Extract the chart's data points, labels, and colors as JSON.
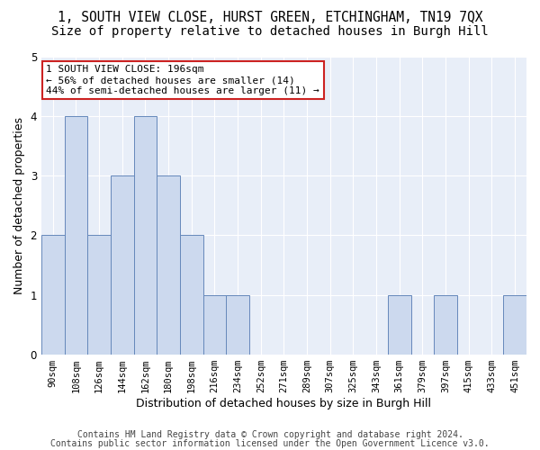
{
  "title1": "1, SOUTH VIEW CLOSE, HURST GREEN, ETCHINGHAM, TN19 7QX",
  "title2": "Size of property relative to detached houses in Burgh Hill",
  "xlabel": "Distribution of detached houses by size in Burgh Hill",
  "ylabel": "Number of detached properties",
  "categories": [
    "90sqm",
    "108sqm",
    "126sqm",
    "144sqm",
    "162sqm",
    "180sqm",
    "198sqm",
    "216sqm",
    "234sqm",
    "252sqm",
    "271sqm",
    "289sqm",
    "307sqm",
    "325sqm",
    "343sqm",
    "361sqm",
    "379sqm",
    "397sqm",
    "415sqm",
    "433sqm",
    "451sqm"
  ],
  "values": [
    2,
    4,
    2,
    3,
    4,
    3,
    2,
    1,
    1,
    0,
    0,
    0,
    0,
    0,
    0,
    1,
    0,
    1,
    0,
    0,
    1
  ],
  "highlight_index": 6,
  "bar_color": "#ccd9ee",
  "bar_edge_color": "#6688bb",
  "annotation_text": "1 SOUTH VIEW CLOSE: 196sqm\n← 56% of detached houses are smaller (14)\n44% of semi-detached houses are larger (11) →",
  "annotation_box_facecolor": "#ffffff",
  "annotation_box_edgecolor": "#cc2222",
  "ylim": [
    0,
    5
  ],
  "yticks": [
    0,
    1,
    2,
    3,
    4,
    5
  ],
  "footnote_line1": "Contains HM Land Registry data © Crown copyright and database right 2024.",
  "footnote_line2": "Contains public sector information licensed under the Open Government Licence v3.0.",
  "fig_facecolor": "#ffffff",
  "plot_facecolor": "#e8eef8",
  "grid_color": "#ffffff",
  "title1_fontsize": 10.5,
  "title2_fontsize": 10,
  "xlabel_fontsize": 9,
  "ylabel_fontsize": 9,
  "tick_fontsize": 7.5,
  "annotation_fontsize": 8,
  "footnote_fontsize": 7
}
